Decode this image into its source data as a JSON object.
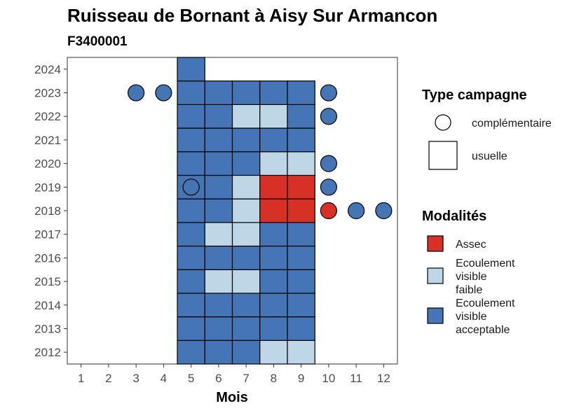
{
  "chart_data": {
    "type": "heatmap",
    "title": "Ruisseau de Bornant à Aisy Sur Armancon",
    "subtitle": "F3400001",
    "xlabel": "Mois",
    "ylabel": "",
    "x_ticks": [
      "1",
      "2",
      "3",
      "4",
      "5",
      "6",
      "7",
      "8",
      "9",
      "10",
      "11",
      "12"
    ],
    "y_ticks": [
      "2012",
      "2013",
      "2014",
      "2015",
      "2016",
      "2017",
      "2018",
      "2019",
      "2020",
      "2021",
      "2022",
      "2023",
      "2024"
    ],
    "xlim": [
      0.5,
      12.5
    ],
    "ylim": [
      2011.5,
      2024.5
    ],
    "grid": false,
    "legend_placement": "right",
    "legend_shape": {
      "title": "Type campagne",
      "entries": [
        {
          "label": "complémentaire",
          "shape": "circle"
        },
        {
          "label": "usuelle",
          "shape": "square"
        }
      ]
    },
    "legend_modalites": {
      "title": "Modalités",
      "entries": [
        {
          "key": "assec",
          "lines": [
            "Assec"
          ],
          "color": "#d73027"
        },
        {
          "key": "faible",
          "lines": [
            "Ecoulement",
            "visible",
            "faible"
          ],
          "color": "#bdd7e7"
        },
        {
          "key": "acceptable",
          "lines": [
            "Ecoulement",
            "visible",
            "acceptable"
          ],
          "color": "#4575b4"
        }
      ]
    },
    "colors": {
      "assec": "#d73027",
      "faible": "#bdd7e7",
      "acceptable": "#4575b4"
    },
    "usuelle": [
      {
        "year": 2012,
        "month": 5,
        "modalite": "acceptable"
      },
      {
        "year": 2012,
        "month": 6,
        "modalite": "acceptable"
      },
      {
        "year": 2012,
        "month": 7,
        "modalite": "acceptable"
      },
      {
        "year": 2012,
        "month": 8,
        "modalite": "faible"
      },
      {
        "year": 2012,
        "month": 9,
        "modalite": "faible"
      },
      {
        "year": 2013,
        "month": 5,
        "modalite": "acceptable"
      },
      {
        "year": 2013,
        "month": 6,
        "modalite": "acceptable"
      },
      {
        "year": 2013,
        "month": 7,
        "modalite": "acceptable"
      },
      {
        "year": 2013,
        "month": 8,
        "modalite": "acceptable"
      },
      {
        "year": 2013,
        "month": 9,
        "modalite": "acceptable"
      },
      {
        "year": 2014,
        "month": 5,
        "modalite": "acceptable"
      },
      {
        "year": 2014,
        "month": 6,
        "modalite": "acceptable"
      },
      {
        "year": 2014,
        "month": 7,
        "modalite": "acceptable"
      },
      {
        "year": 2014,
        "month": 8,
        "modalite": "acceptable"
      },
      {
        "year": 2014,
        "month": 9,
        "modalite": "acceptable"
      },
      {
        "year": 2015,
        "month": 5,
        "modalite": "acceptable"
      },
      {
        "year": 2015,
        "month": 6,
        "modalite": "faible"
      },
      {
        "year": 2015,
        "month": 7,
        "modalite": "faible"
      },
      {
        "year": 2015,
        "month": 8,
        "modalite": "acceptable"
      },
      {
        "year": 2015,
        "month": 9,
        "modalite": "acceptable"
      },
      {
        "year": 2016,
        "month": 5,
        "modalite": "acceptable"
      },
      {
        "year": 2016,
        "month": 6,
        "modalite": "acceptable"
      },
      {
        "year": 2016,
        "month": 7,
        "modalite": "acceptable"
      },
      {
        "year": 2016,
        "month": 8,
        "modalite": "acceptable"
      },
      {
        "year": 2016,
        "month": 9,
        "modalite": "acceptable"
      },
      {
        "year": 2017,
        "month": 5,
        "modalite": "acceptable"
      },
      {
        "year": 2017,
        "month": 6,
        "modalite": "faible"
      },
      {
        "year": 2017,
        "month": 7,
        "modalite": "faible"
      },
      {
        "year": 2017,
        "month": 8,
        "modalite": "acceptable"
      },
      {
        "year": 2017,
        "month": 9,
        "modalite": "acceptable"
      },
      {
        "year": 2018,
        "month": 5,
        "modalite": "acceptable"
      },
      {
        "year": 2018,
        "month": 6,
        "modalite": "acceptable"
      },
      {
        "year": 2018,
        "month": 7,
        "modalite": "faible"
      },
      {
        "year": 2018,
        "month": 8,
        "modalite": "assec"
      },
      {
        "year": 2018,
        "month": 9,
        "modalite": "assec"
      },
      {
        "year": 2019,
        "month": 5,
        "modalite": "acceptable"
      },
      {
        "year": 2019,
        "month": 6,
        "modalite": "acceptable"
      },
      {
        "year": 2019,
        "month": 7,
        "modalite": "faible"
      },
      {
        "year": 2019,
        "month": 8,
        "modalite": "assec"
      },
      {
        "year": 2019,
        "month": 9,
        "modalite": "assec"
      },
      {
        "year": 2020,
        "month": 5,
        "modalite": "acceptable"
      },
      {
        "year": 2020,
        "month": 6,
        "modalite": "acceptable"
      },
      {
        "year": 2020,
        "month": 7,
        "modalite": "acceptable"
      },
      {
        "year": 2020,
        "month": 8,
        "modalite": "faible"
      },
      {
        "year": 2020,
        "month": 9,
        "modalite": "faible"
      },
      {
        "year": 2021,
        "month": 5,
        "modalite": "acceptable"
      },
      {
        "year": 2021,
        "month": 6,
        "modalite": "acceptable"
      },
      {
        "year": 2021,
        "month": 7,
        "modalite": "acceptable"
      },
      {
        "year": 2021,
        "month": 8,
        "modalite": "acceptable"
      },
      {
        "year": 2021,
        "month": 9,
        "modalite": "acceptable"
      },
      {
        "year": 2022,
        "month": 5,
        "modalite": "acceptable"
      },
      {
        "year": 2022,
        "month": 6,
        "modalite": "acceptable"
      },
      {
        "year": 2022,
        "month": 7,
        "modalite": "faible"
      },
      {
        "year": 2022,
        "month": 8,
        "modalite": "faible"
      },
      {
        "year": 2022,
        "month": 9,
        "modalite": "acceptable"
      },
      {
        "year": 2023,
        "month": 5,
        "modalite": "acceptable"
      },
      {
        "year": 2023,
        "month": 6,
        "modalite": "acceptable"
      },
      {
        "year": 2023,
        "month": 7,
        "modalite": "acceptable"
      },
      {
        "year": 2023,
        "month": 8,
        "modalite": "acceptable"
      },
      {
        "year": 2023,
        "month": 9,
        "modalite": "acceptable"
      },
      {
        "year": 2024,
        "month": 5,
        "modalite": "acceptable"
      }
    ],
    "complementaire": [
      {
        "year": 2023,
        "month": 3,
        "modalite": "acceptable"
      },
      {
        "year": 2023,
        "month": 4,
        "modalite": "acceptable"
      },
      {
        "year": 2023,
        "month": 10,
        "modalite": "acceptable"
      },
      {
        "year": 2022,
        "month": 10,
        "modalite": "acceptable"
      },
      {
        "year": 2020,
        "month": 10,
        "modalite": "acceptable"
      },
      {
        "year": 2019,
        "month": 5,
        "modalite": "acceptable"
      },
      {
        "year": 2019,
        "month": 10,
        "modalite": "acceptable"
      },
      {
        "year": 2018,
        "month": 10,
        "modalite": "assec"
      },
      {
        "year": 2018,
        "month": 11,
        "modalite": "acceptable"
      },
      {
        "year": 2018,
        "month": 12,
        "modalite": "acceptable"
      }
    ]
  }
}
